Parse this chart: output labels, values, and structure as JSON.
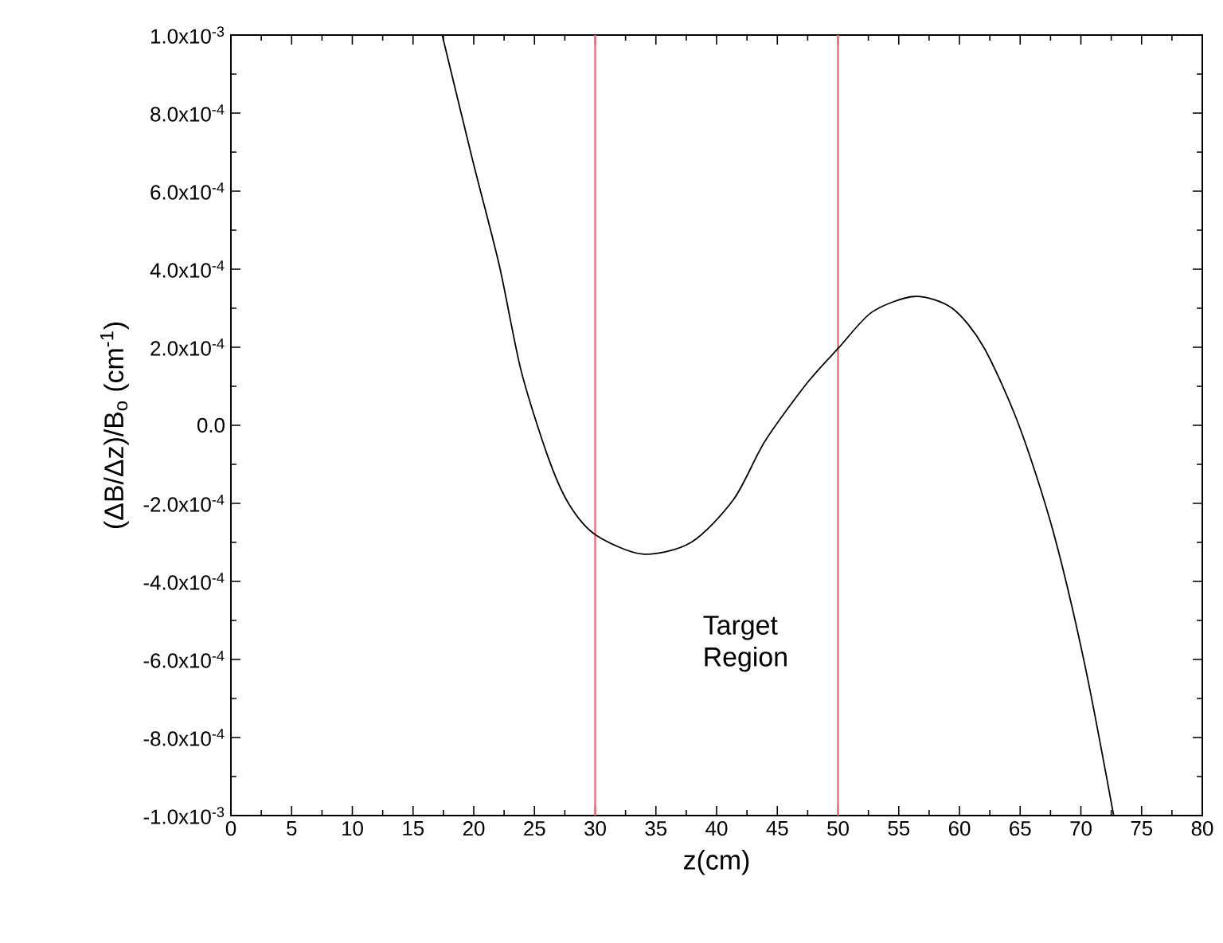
{
  "chart_data": {
    "type": "line",
    "xlabel": "z(cm)",
    "ylabel": "(ΔB/Δz)/B$_{o}$ (cm$^{-1}$)",
    "xlim": [
      0,
      80
    ],
    "ylim": [
      -0.001,
      0.001
    ],
    "xticks": [
      0,
      5,
      10,
      15,
      20,
      25,
      30,
      35,
      40,
      45,
      50,
      55,
      60,
      65,
      70,
      75,
      80
    ],
    "yticks": [
      {
        "value": -0.001,
        "label": "-1.0x10$^{-3}$"
      },
      {
        "value": -0.0008,
        "label": "-8.0x10$^{-4}$"
      },
      {
        "value": -0.0006,
        "label": "-6.0x10$^{-4}$"
      },
      {
        "value": -0.0004,
        "label": "-4.0x10$^{-4}$"
      },
      {
        "value": -0.0002,
        "label": "-2.0x10$^{-4}$"
      },
      {
        "value": 0,
        "label": "0.0"
      },
      {
        "value": 0.0002,
        "label": "2.0x10$^{-4}$"
      },
      {
        "value": 0.0004,
        "label": "4.0x10$^{-4}$"
      },
      {
        "value": 0.0006,
        "label": "6.0x10$^{-4}$"
      },
      {
        "value": 0.0008,
        "label": "8.0x10$^{-4}$"
      },
      {
        "value": 0.001,
        "label": "1.0x10$^{-3}$"
      }
    ],
    "marker": "none",
    "line_style": "solid",
    "series": [
      {
        "color": "#000000",
        "x": [
          17.4,
          19.9,
          22.1,
          23.9,
          26.1,
          27.8,
          30.0,
          33.9,
          37.9,
          41.4,
          44.0,
          47.5,
          50.1,
          52.8,
          56.3,
          59.4,
          62.0,
          64.9,
          67.7,
          70.3,
          72.7
        ],
        "values": [
          0.001,
          0.00068,
          0.00041,
          0.00014,
          -8e-05,
          -0.0002,
          -0.00028,
          -0.00033,
          -0.0003,
          -0.00019,
          -4e-05,
          0.00011,
          0.0002,
          0.00029,
          0.00033,
          0.0003,
          0.0002,
          0.0,
          -0.00027,
          -0.00061,
          -0.001
        ]
      }
    ],
    "ref_lines": [
      {
        "axis": "x",
        "value": 30,
        "color": "#e8707a",
        "line_style": "solid"
      },
      {
        "axis": "x",
        "value": 50,
        "color": "#e8707a",
        "line_style": "solid"
      }
    ],
    "annotations": [
      "Target Region"
    ]
  }
}
